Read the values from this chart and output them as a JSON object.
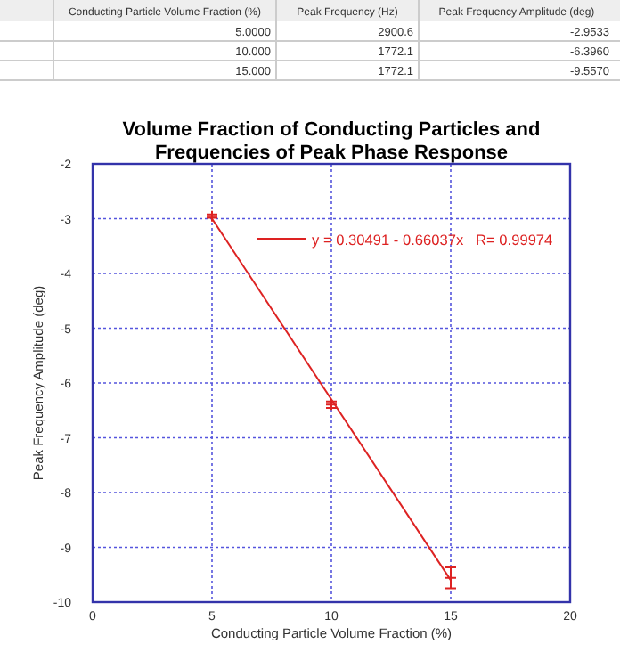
{
  "chart_data": [
    {
      "type": "other",
      "categories": [
        "Conducting Particle Volume Fraction (%)",
        "Peak Frequency (Hz)",
        "Peak Frequency Amplitude (deg)"
      ],
      "cells": [
        [
          "5.0000",
          "2900.6",
          "-2.9533"
        ],
        [
          "10.000",
          "1772.1",
          "-6.3960"
        ],
        [
          "15.000",
          "1772.1",
          "-9.5570"
        ]
      ]
    },
    {
      "type": "scatter",
      "title": "Volume Fraction of Conducting Particles and Frequencies of Peak Phase Response",
      "xlabel": "Conducting Particle Volume Fraction (%)",
      "ylabel": "Peak Frequency Amplitude (deg)",
      "xlim": [
        0,
        20
      ],
      "xticks": [
        0,
        5,
        10,
        15,
        20
      ],
      "ylim": [
        -10,
        -2
      ],
      "yticks": [
        -10,
        -9,
        -8,
        -7,
        -6,
        -5,
        -4,
        -3,
        -2
      ],
      "grid": true,
      "legend": "top right",
      "series": [
        {
          "type": "scatter",
          "color": "#dd2222",
          "marker": "cross",
          "x": [
            5,
            10,
            15
          ],
          "values": [
            -2.9533,
            -6.396,
            -9.557
          ],
          "errors": [
            0.03,
            0.06,
            0.19
          ]
        },
        {
          "type": "line",
          "name": "y = 0.30491 - 0.66037x   R= 0.99974",
          "color": "#dd2222",
          "line_style": "solid",
          "marker": "none",
          "x": [
            5,
            15
          ],
          "values": [
            -3.0,
            -9.6
          ]
        }
      ]
    }
  ]
}
